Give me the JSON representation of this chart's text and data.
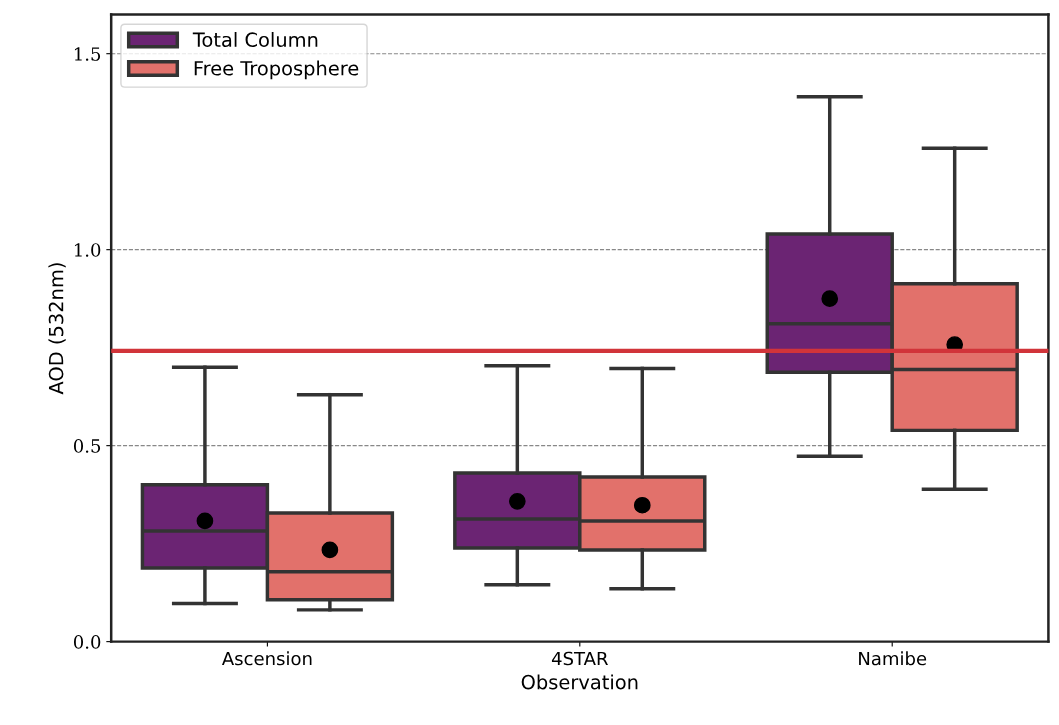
{
  "chart_data": {
    "type": "box",
    "xlabel": "Observation",
    "ylabel": "AOD (532nm)",
    "categories": [
      "Ascension",
      "4STAR",
      "Namibe"
    ],
    "series": [
      {
        "name": "Total Column",
        "color": "#6b2473",
        "boxes": [
          {
            "low": 0.097,
            "q1": 0.188,
            "median": 0.282,
            "q3": 0.4,
            "high": 0.7,
            "mean": 0.308
          },
          {
            "low": 0.145,
            "q1": 0.239,
            "median": 0.313,
            "q3": 0.43,
            "high": 0.704,
            "mean": 0.358
          },
          {
            "low": 0.473,
            "q1": 0.687,
            "median": 0.811,
            "q3": 1.04,
            "high": 1.39,
            "mean": 0.875
          }
        ]
      },
      {
        "name": "Free Troposphere",
        "color": "#e2716b",
        "boxes": [
          {
            "low": 0.081,
            "q1": 0.107,
            "median": 0.178,
            "q3": 0.328,
            "high": 0.63,
            "mean": 0.234
          },
          {
            "low": 0.135,
            "q1": 0.234,
            "median": 0.308,
            "q3": 0.42,
            "high": 0.697,
            "mean": 0.348
          },
          {
            "low": 0.389,
            "q1": 0.539,
            "median": 0.694,
            "q3": 0.913,
            "high": 1.259,
            "mean": 0.758
          }
        ]
      }
    ],
    "ylim": [
      0,
      1.6
    ],
    "yticks": [
      {
        "value": 0,
        "label": "0.0"
      },
      {
        "value": 0.5,
        "label": "0.5"
      },
      {
        "value": 1.0,
        "label": "1.0"
      },
      {
        "value": 1.5,
        "label": "1.5"
      }
    ],
    "ref_lines": [
      {
        "axis": "y",
        "value": 0.742,
        "color": "#d1343a"
      }
    ],
    "grid": "y",
    "legend": "top left"
  }
}
